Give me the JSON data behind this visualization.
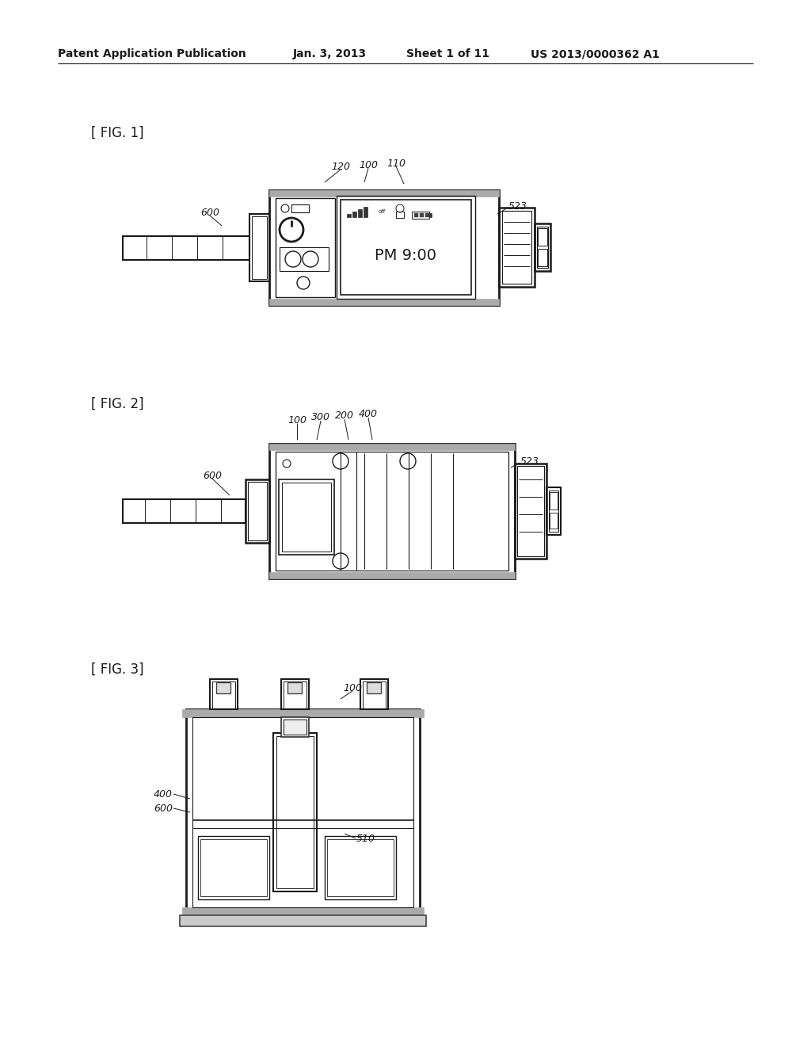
{
  "bg_color": "#ffffff",
  "line_color": "#1a1a1a",
  "header_text1": "Patent Application Publication",
  "header_text2": "Jan. 3, 2013",
  "header_text3": "Sheet 1 of 11",
  "header_text4": "US 2013/0000362 A1",
  "fig1_label": "[ FIG. 1]",
  "fig2_label": "[ FIG. 2]",
  "fig3_label": "[ FIG. 3]"
}
